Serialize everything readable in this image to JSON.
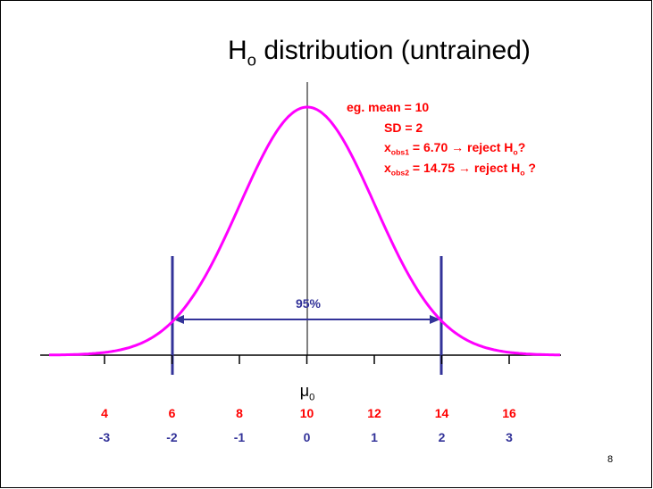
{
  "slide": {
    "title": {
      "main": "H",
      "sub": "o",
      "rest": " distribution (untrained)"
    },
    "annotations": {
      "mean": "eg. mean = 10",
      "sd": "SD = 2",
      "obs1": {
        "var": "x",
        "sub": "obs1",
        "text": " = 6.70 → reject H",
        "sub2": "o",
        "end": "?"
      },
      "obs2": {
        "var": "x",
        "sub": "obs2",
        "text": " = 14.75 → reject H",
        "sub2": "o",
        "end": " ?"
      }
    },
    "interval_label": "95%",
    "axis_label": {
      "main": "μ",
      "sub": "0"
    },
    "x_values": [
      4,
      6,
      8,
      10,
      12,
      14,
      16
    ],
    "z_values": [
      -3,
      -2,
      -1,
      0,
      1,
      2,
      3
    ],
    "page_number": 8
  }
}
